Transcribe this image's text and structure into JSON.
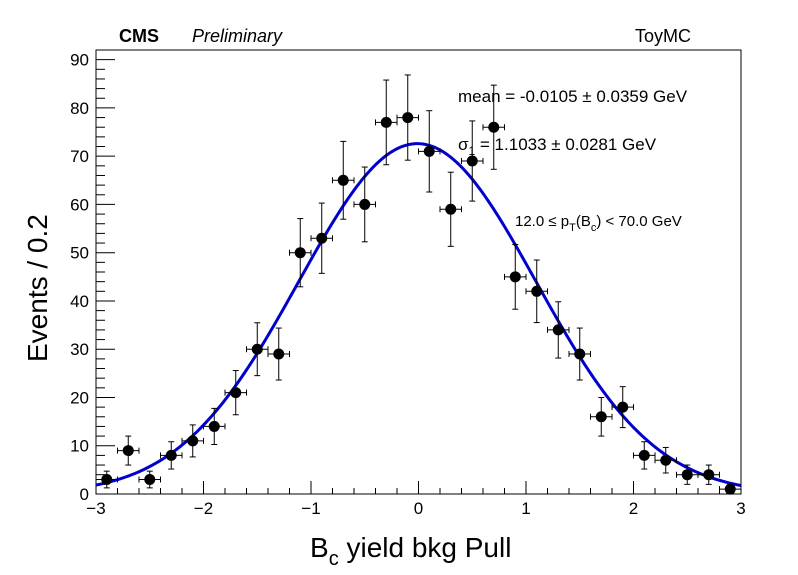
{
  "header": {
    "experiment": "CMS",
    "status": "Preliminary",
    "sample": "ToyMC"
  },
  "chart_data": {
    "type": "scatter",
    "xlabel": {
      "base": "B",
      "sub": "c",
      "rest": " yield bkg Pull"
    },
    "ylabel": "Events / 0.2",
    "xlim": [
      -3,
      3
    ],
    "ylim": [
      0,
      92
    ],
    "x_ticks": [
      {
        "v": -3,
        "label": "−3"
      },
      {
        "v": -2,
        "label": "−2"
      },
      {
        "v": -1,
        "label": "−1"
      },
      {
        "v": 0,
        "label": "0"
      },
      {
        "v": 1,
        "label": "1"
      },
      {
        "v": 2,
        "label": "2"
      },
      {
        "v": 3,
        "label": "3"
      }
    ],
    "y_ticks": [
      0,
      10,
      20,
      30,
      40,
      50,
      60,
      70,
      80,
      90
    ],
    "bin_width": 0.2,
    "series": [
      {
        "type": "points_with_errors",
        "color": "#000000",
        "points": [
          {
            "x": -2.9,
            "y": 3
          },
          {
            "x": -2.7,
            "y": 9
          },
          {
            "x": -2.5,
            "y": 3
          },
          {
            "x": -2.3,
            "y": 8
          },
          {
            "x": -2.1,
            "y": 11
          },
          {
            "x": -1.9,
            "y": 14
          },
          {
            "x": -1.7,
            "y": 21
          },
          {
            "x": -1.5,
            "y": 30
          },
          {
            "x": -1.3,
            "y": 29
          },
          {
            "x": -1.1,
            "y": 50
          },
          {
            "x": -0.9,
            "y": 53
          },
          {
            "x": -0.7,
            "y": 65
          },
          {
            "x": -0.5,
            "y": 60
          },
          {
            "x": -0.3,
            "y": 77
          },
          {
            "x": -0.1,
            "y": 78
          },
          {
            "x": 0.1,
            "y": 71
          },
          {
            "x": 0.3,
            "y": 59
          },
          {
            "x": 0.5,
            "y": 69
          },
          {
            "x": 0.7,
            "y": 76
          },
          {
            "x": 0.9,
            "y": 45
          },
          {
            "x": 1.1,
            "y": 42
          },
          {
            "x": 1.3,
            "y": 34
          },
          {
            "x": 1.5,
            "y": 29
          },
          {
            "x": 1.7,
            "y": 16
          },
          {
            "x": 1.9,
            "y": 18
          },
          {
            "x": 2.1,
            "y": 8
          },
          {
            "x": 2.3,
            "y": 7
          },
          {
            "x": 2.5,
            "y": 4
          },
          {
            "x": 2.7,
            "y": 4
          },
          {
            "x": 2.9,
            "y": 1
          }
        ]
      },
      {
        "type": "gaussian_fit",
        "color": "#0000cc",
        "mean": -0.0105,
        "sigma": 1.1033,
        "amplitude": 72.6
      }
    ],
    "annotations": {
      "mean_text": "mean = -0.0105 ± 0.0359 GeV",
      "sigma_symbol": "σ",
      "sigma_sub": "1",
      "sigma_text": " = 1.1033 ± 0.0281 GeV",
      "pt_lo": "12.0 ≤ p",
      "pt_sub_T": "T",
      "pt_mid": "(B",
      "pt_sub_c": "c",
      "pt_hi": ") < 70.0 GeV"
    }
  }
}
